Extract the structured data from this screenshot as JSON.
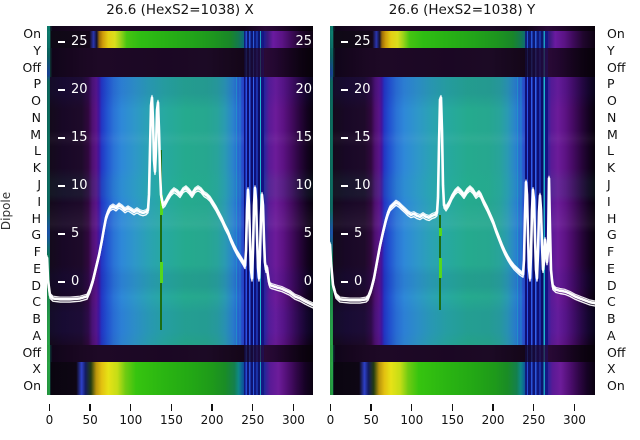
{
  "figure": {
    "y_axis_title": "Dipole",
    "left_axis_labels": [
      "On",
      "Y",
      "Off",
      "P",
      "O",
      "N",
      "M",
      "L",
      "K",
      "J",
      "I",
      "H",
      "G",
      "F",
      "E",
      "D",
      "C",
      "B",
      "A",
      "Off",
      "X",
      "On"
    ],
    "right_axis_labels": [
      "On",
      "Y",
      "Off",
      "P",
      "O",
      "N",
      "M",
      "L",
      "K",
      "J",
      "I",
      "H",
      "G",
      "F",
      "E",
      "D",
      "C",
      "B",
      "A",
      "Off",
      "X",
      "On"
    ],
    "colors": {
      "trace": "#ffffff",
      "marker_line_bright": "#55d81c",
      "marker_line_dark": "#1b6e14",
      "stripe_blue": "#2a52e6",
      "text": "#111111"
    }
  },
  "chart_data": [
    {
      "type": "heatmap+line",
      "title": "26.6 (HexS2=1038) X",
      "x_ticks": [
        0,
        50,
        100,
        150,
        200,
        250,
        300
      ],
      "x_range": [
        0,
        325
      ],
      "inner_value_ticks": [
        25,
        20,
        15,
        10,
        5,
        0
      ],
      "rows": [
        "On",
        "Y",
        "Off",
        "P",
        "O",
        "N",
        "M",
        "L",
        "K",
        "J",
        "I",
        "H",
        "G",
        "F",
        "E",
        "D",
        "C",
        "B",
        "A",
        "Off",
        "X",
        "On"
      ],
      "legend": "none",
      "grid": false,
      "line_series": {
        "name": "trace-x",
        "points": [
          [
            -3,
            2.6
          ],
          [
            -1.8,
            0.3
          ],
          [
            0.6,
            -1.3
          ],
          [
            4.3,
            -1.6
          ],
          [
            12.9,
            -1.7
          ],
          [
            25.2,
            -1.7
          ],
          [
            37.5,
            -1.6
          ],
          [
            46.1,
            -1.4
          ],
          [
            49.8,
            -0.7
          ],
          [
            53.5,
            0.3
          ],
          [
            57.2,
            1.6
          ],
          [
            60.9,
            2.9
          ],
          [
            64.6,
            4.5
          ],
          [
            67,
            5.7
          ],
          [
            69.5,
            6.8
          ],
          [
            71.9,
            7.4
          ],
          [
            74.4,
            7.8
          ],
          [
            78.1,
            8
          ],
          [
            81.8,
            7.8
          ],
          [
            85.5,
            8.1
          ],
          [
            89.2,
            7.9
          ],
          [
            92.9,
            7.6
          ],
          [
            96.6,
            7.8
          ],
          [
            100.2,
            7.6
          ],
          [
            103.9,
            7.4
          ],
          [
            107.6,
            7.6
          ],
          [
            111.3,
            7.4
          ],
          [
            115,
            7.3
          ],
          [
            118.7,
            7.4
          ],
          [
            121.2,
            7.6
          ],
          [
            122.4,
            9.2
          ],
          [
            123.6,
            13.9
          ],
          [
            124.8,
            18.5
          ],
          [
            126.1,
            19.3
          ],
          [
            127.3,
            17
          ],
          [
            128.5,
            12.8
          ],
          [
            129.8,
            11.6
          ],
          [
            131,
            13.9
          ],
          [
            132.2,
            18
          ],
          [
            133.4,
            18.8
          ],
          [
            134.7,
            15.9
          ],
          [
            135.9,
            11.8
          ],
          [
            137.1,
            9.2
          ],
          [
            139.6,
            8.1
          ],
          [
            142.1,
            8.3
          ],
          [
            145.8,
            8.9
          ],
          [
            149.4,
            9.4
          ],
          [
            153.1,
            9.7
          ],
          [
            156.8,
            9.5
          ],
          [
            160.5,
            9.2
          ],
          [
            164.2,
            9.7
          ],
          [
            167.9,
            9.9
          ],
          [
            171.6,
            9.6
          ],
          [
            175.3,
            9.2
          ],
          [
            179,
            9.7
          ],
          [
            182.7,
            9.9
          ],
          [
            186.3,
            9.7
          ],
          [
            190,
            9.3
          ],
          [
            193.7,
            9.1
          ],
          [
            197.4,
            8.8
          ],
          [
            201.1,
            8.3
          ],
          [
            204.8,
            7.8
          ],
          [
            208.5,
            7.2
          ],
          [
            212.2,
            6.6
          ],
          [
            215.9,
            5.9
          ],
          [
            219.6,
            5.3
          ],
          [
            223.2,
            4.5
          ],
          [
            226.9,
            3.8
          ],
          [
            230.6,
            3.2
          ],
          [
            234.3,
            2.7
          ],
          [
            238,
            2.2
          ],
          [
            240.5,
            1.8
          ],
          [
            241.7,
            3.4
          ],
          [
            242.9,
            7.6
          ],
          [
            244.2,
            9.7
          ],
          [
            245.4,
            8.1
          ],
          [
            246.6,
            4.5
          ],
          [
            247.8,
            1.4
          ],
          [
            249.1,
            0.5
          ],
          [
            250.3,
            3.4
          ],
          [
            251.5,
            8.1
          ],
          [
            252.8,
            9.9
          ],
          [
            254,
            8.6
          ],
          [
            255.2,
            5
          ],
          [
            256.4,
            1.6
          ],
          [
            257.7,
            0.5
          ],
          [
            258.9,
            2.9
          ],
          [
            260.1,
            7.1
          ],
          [
            261.4,
            9.2
          ],
          [
            262.6,
            8.1
          ],
          [
            263.8,
            4.5
          ],
          [
            265,
            2.2
          ],
          [
            266.3,
            1.4
          ],
          [
            267.5,
            1.6
          ],
          [
            268.7,
            0.8
          ],
          [
            270,
            0.1
          ],
          [
            271.2,
            -0.2
          ],
          [
            273.6,
            -0.3
          ],
          [
            277.3,
            -0.4
          ],
          [
            281,
            -0.5
          ],
          [
            285.9,
            -0.6
          ],
          [
            290.8,
            -0.8
          ],
          [
            295.7,
            -1
          ],
          [
            301.8,
            -1.4
          ],
          [
            308,
            -1.6
          ],
          [
            314.1,
            -1.9
          ],
          [
            319.1,
            -2.1
          ],
          [
            324,
            -2.3
          ]
        ]
      }
    },
    {
      "type": "heatmap+line",
      "title": "26.6 (HexS2=1038) Y",
      "x_ticks": [
        0,
        50,
        100,
        150,
        200,
        250,
        300
      ],
      "x_range": [
        0,
        325
      ],
      "inner_value_ticks": [
        25,
        20,
        15,
        10,
        5,
        0
      ],
      "rows": [
        "On",
        "Y",
        "Off",
        "P",
        "O",
        "N",
        "M",
        "L",
        "K",
        "J",
        "I",
        "H",
        "G",
        "F",
        "E",
        "D",
        "C",
        "B",
        "A",
        "Off",
        "X",
        "On"
      ],
      "legend": "none",
      "grid": false,
      "line_series": {
        "name": "trace-y",
        "points": [
          [
            -0.6,
            4
          ],
          [
            0.6,
            2.1
          ],
          [
            3.1,
            -0.2
          ],
          [
            6.8,
            -1.3
          ],
          [
            11.7,
            -1.7
          ],
          [
            24,
            -1.8
          ],
          [
            36.3,
            -1.8
          ],
          [
            43.7,
            -1.7
          ],
          [
            46.1,
            -1.5
          ],
          [
            49.8,
            -0.7
          ],
          [
            53.5,
            0.5
          ],
          [
            57.2,
            2.2
          ],
          [
            60.9,
            3.9
          ],
          [
            64.6,
            5.3
          ],
          [
            68.3,
            6.6
          ],
          [
            70.7,
            7.3
          ],
          [
            73.2,
            7.8
          ],
          [
            76.9,
            8.1
          ],
          [
            80.6,
            8.4
          ],
          [
            84.3,
            8.2
          ],
          [
            87.9,
            7.9
          ],
          [
            91.6,
            7.6
          ],
          [
            95.3,
            7.3
          ],
          [
            99,
            7.1
          ],
          [
            102.7,
            7.2
          ],
          [
            106.4,
            7
          ],
          [
            110.1,
            6.9
          ],
          [
            113.8,
            7.1
          ],
          [
            117.5,
            6.9
          ],
          [
            121.2,
            6.8
          ],
          [
            124.8,
            7
          ],
          [
            128.5,
            7.1
          ],
          [
            131,
            7.3
          ],
          [
            132.2,
            8.9
          ],
          [
            133.4,
            14.4
          ],
          [
            134.7,
            19.1
          ],
          [
            135.9,
            19.3
          ],
          [
            137.1,
            15.9
          ],
          [
            138.4,
            10.2
          ],
          [
            139.6,
            8.1
          ],
          [
            142.1,
            7.8
          ],
          [
            145.8,
            8.3
          ],
          [
            149.4,
            9
          ],
          [
            153.1,
            9.5
          ],
          [
            156.8,
            9.8
          ],
          [
            160.5,
            9.5
          ],
          [
            164.2,
            9.1
          ],
          [
            167.9,
            9.6
          ],
          [
            171.6,
            9.9
          ],
          [
            175.3,
            9.6
          ],
          [
            179,
            9.1
          ],
          [
            182.7,
            9.4
          ],
          [
            185.1,
            9.1
          ],
          [
            188.8,
            8.4
          ],
          [
            192.5,
            7.8
          ],
          [
            196.2,
            7.1
          ],
          [
            199.9,
            6.4
          ],
          [
            203.6,
            5.5
          ],
          [
            207.3,
            4.7
          ],
          [
            211,
            3.9
          ],
          [
            214.6,
            3.2
          ],
          [
            218.3,
            2.6
          ],
          [
            222,
            2.1
          ],
          [
            225.7,
            1.7
          ],
          [
            229.4,
            1.4
          ],
          [
            233.1,
            1.1
          ],
          [
            236.8,
            0.9
          ],
          [
            238,
            2.4
          ],
          [
            239.2,
            7.1
          ],
          [
            240.5,
            10.5
          ],
          [
            241.7,
            9.2
          ],
          [
            242.9,
            5
          ],
          [
            244.2,
            1.6
          ],
          [
            245.4,
            0.5
          ],
          [
            246.6,
            2.9
          ],
          [
            247.8,
            7.6
          ],
          [
            249.1,
            9.7
          ],
          [
            250.3,
            8.6
          ],
          [
            251.5,
            4.7
          ],
          [
            252.8,
            1.4
          ],
          [
            254,
            0.5
          ],
          [
            255.2,
            3.2
          ],
          [
            256.4,
            7.4
          ],
          [
            257.7,
            9.1
          ],
          [
            258.9,
            7.6
          ],
          [
            260.1,
            4
          ],
          [
            261.4,
            1.4
          ],
          [
            262.6,
            2.2
          ],
          [
            263.8,
            4.5
          ],
          [
            265,
            3.6
          ],
          [
            266.3,
            2.2
          ],
          [
            267.5,
            3.4
          ],
          [
            268.7,
            10.9
          ],
          [
            270,
            5.7
          ],
          [
            271.2,
            1.4
          ],
          [
            272.4,
            0.3
          ],
          [
            273.6,
            -0.4
          ],
          [
            277.3,
            -0.7
          ],
          [
            282.2,
            -0.8
          ],
          [
            288.4,
            -0.9
          ],
          [
            294.5,
            -1.1
          ],
          [
            300.6,
            -1.4
          ],
          [
            306.8,
            -1.6
          ],
          [
            312.9,
            -1.8
          ],
          [
            319.1,
            -2
          ],
          [
            325.2,
            -2.1
          ]
        ]
      }
    }
  ]
}
